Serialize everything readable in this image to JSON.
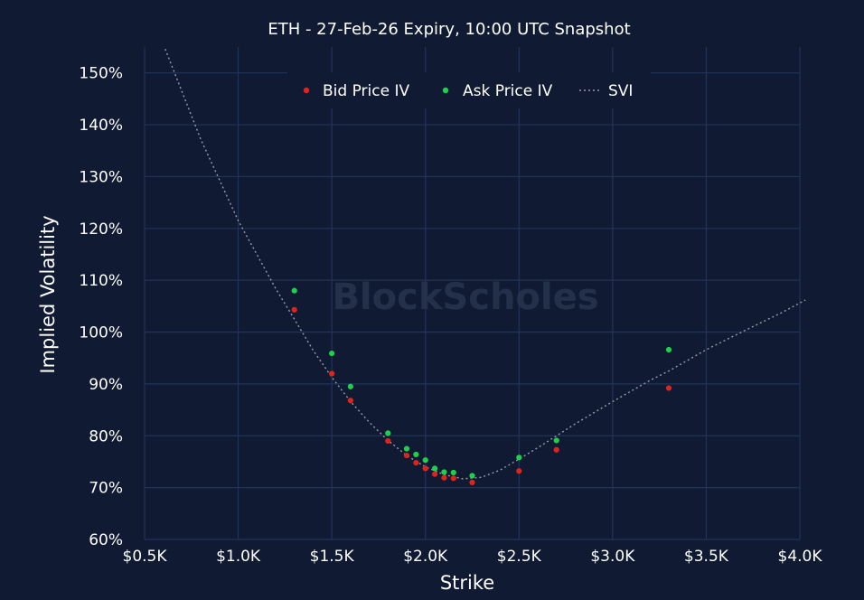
{
  "chart_data": {
    "type": "scatter",
    "title": "ETH - 27-Feb-26 Expiry, 10:00 UTC Snapshot",
    "xlabel": "Strike",
    "ylabel": "Implied Volatility",
    "xlim": [
      500,
      4000
    ],
    "ylim": [
      60,
      155
    ],
    "x_ticks": [
      500,
      1000,
      1500,
      2000,
      2500,
      3000,
      3500,
      4000
    ],
    "x_tick_labels": [
      "$0.5K",
      "$1.0K",
      "$1.5K",
      "$2.0K",
      "$2.5K",
      "$3.0K",
      "$3.5K",
      "$4.0K"
    ],
    "y_ticks": [
      60,
      70,
      80,
      90,
      100,
      110,
      120,
      130,
      140,
      150
    ],
    "y_tick_labels": [
      "60%",
      "70%",
      "80%",
      "90%",
      "100%",
      "110%",
      "120%",
      "130%",
      "140%",
      "150%"
    ],
    "grid": true,
    "legend_position": "top-center",
    "watermark": "BlockScholes",
    "series": [
      {
        "name": "Bid Price IV",
        "kind": "scatter",
        "color": "#e0241b",
        "points": [
          [
            1300,
            104.3
          ],
          [
            1500,
            92.0
          ],
          [
            1600,
            86.8
          ],
          [
            1800,
            79.0
          ],
          [
            1900,
            76.2
          ],
          [
            1950,
            74.8
          ],
          [
            2000,
            73.7
          ],
          [
            2050,
            72.6
          ],
          [
            2100,
            71.9
          ],
          [
            2150,
            71.8
          ],
          [
            2250,
            71.0
          ],
          [
            2500,
            73.2
          ],
          [
            2700,
            77.3
          ],
          [
            3300,
            89.2
          ]
        ]
      },
      {
        "name": "Ask Price IV",
        "kind": "scatter",
        "color": "#1ed14b",
        "points": [
          [
            1300,
            108.0
          ],
          [
            1500,
            95.9
          ],
          [
            1600,
            89.5
          ],
          [
            1800,
            80.5
          ],
          [
            1900,
            77.5
          ],
          [
            1950,
            76.4
          ],
          [
            2000,
            75.3
          ],
          [
            2050,
            73.7
          ],
          [
            2100,
            73.0
          ],
          [
            2150,
            72.9
          ],
          [
            2250,
            72.3
          ],
          [
            2500,
            75.8
          ],
          [
            2700,
            79.1
          ],
          [
            3300,
            96.6
          ]
        ]
      },
      {
        "name": "SVI",
        "kind": "line",
        "style": "dotted",
        "color": "#9a9aa6",
        "points": [
          [
            610,
            154.6
          ],
          [
            800,
            137.2
          ],
          [
            1000,
            121.5
          ],
          [
            1200,
            108.4
          ],
          [
            1300,
            102.5
          ],
          [
            1400,
            96.5
          ],
          [
            1500,
            91.3
          ],
          [
            1600,
            86.6
          ],
          [
            1700,
            82.6
          ],
          [
            1800,
            79.1
          ],
          [
            1900,
            76.2
          ],
          [
            2000,
            74.0
          ],
          [
            2100,
            72.5
          ],
          [
            2200,
            71.7
          ],
          [
            2300,
            72.0
          ],
          [
            2400,
            73.4
          ],
          [
            2500,
            75.5
          ],
          [
            2600,
            77.7
          ],
          [
            2700,
            80.0
          ],
          [
            2800,
            82.3
          ],
          [
            3000,
            86.6
          ],
          [
            3200,
            90.7
          ],
          [
            3300,
            92.5
          ],
          [
            3500,
            96.6
          ],
          [
            3700,
            100.2
          ],
          [
            3900,
            103.7
          ],
          [
            4030,
            106.2
          ]
        ]
      }
    ]
  }
}
